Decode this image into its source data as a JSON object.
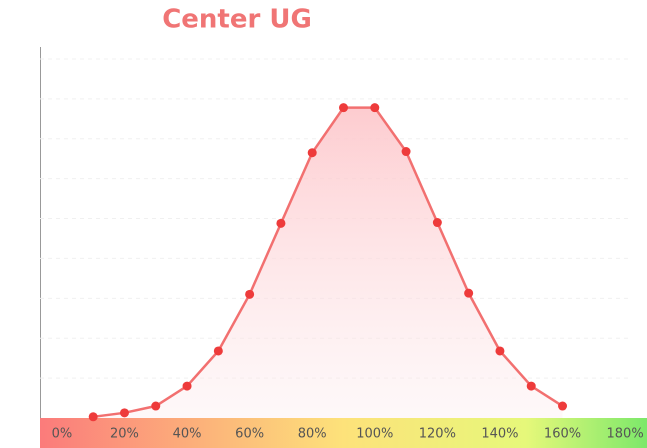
{
  "chart_data": {
    "type": "line",
    "title": "Center UG",
    "x": [
      10,
      20,
      30,
      40,
      50,
      60,
      70,
      80,
      90,
      100,
      110,
      120,
      130,
      140,
      150,
      160
    ],
    "series": [
      {
        "color": "#f27070",
        "values": [
          0.03,
          0.13,
          0.3,
          0.8,
          1.68,
          3.1,
          4.88,
          6.65,
          7.78,
          7.78,
          6.68,
          4.9,
          3.13,
          1.68,
          0.8,
          0.3
        ]
      }
    ],
    "xlim": [
      -7,
      187
    ],
    "xticks": [
      {
        "value": 0,
        "label": "0%"
      },
      {
        "value": 20,
        "label": "20%"
      },
      {
        "value": 40,
        "label": "40%"
      },
      {
        "value": 60,
        "label": "60%"
      },
      {
        "value": 80,
        "label": "80%"
      },
      {
        "value": 100,
        "label": "100%"
      },
      {
        "value": 120,
        "label": "120%"
      },
      {
        "value": 140,
        "label": "140%"
      },
      {
        "value": 160,
        "label": "160%"
      },
      {
        "value": 180,
        "label": "180%"
      }
    ],
    "ylim": [
      0,
      9.3
    ],
    "yticks": [
      1,
      2,
      3,
      4,
      5,
      6,
      7,
      8,
      9
    ],
    "grid": true
  }
}
